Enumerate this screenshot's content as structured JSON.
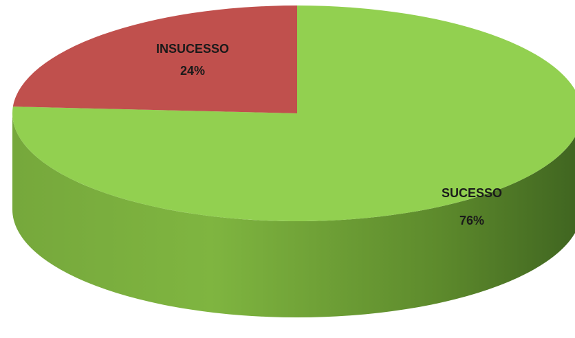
{
  "chart_data": {
    "type": "pie",
    "categories": [
      "SUCESSO",
      "INSUCESSO"
    ],
    "values": [
      76,
      24
    ],
    "value_labels": [
      "76%",
      "24%"
    ],
    "colors": [
      "#92d050",
      "#c0504d"
    ]
  }
}
